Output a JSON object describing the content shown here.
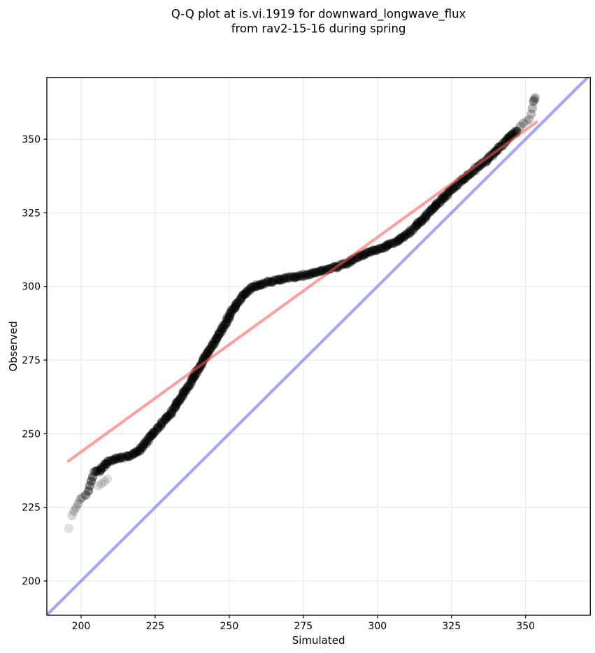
{
  "title": {
    "line1": "Q-Q plot at is.vi.1919 for downward_longwave_flux",
    "line2": "from rav2-15-16 during spring"
  },
  "chart_data": {
    "type": "scatter",
    "title": "Q-Q plot at is.vi.1919 for downward_longwave_flux from rav2-15-16 during spring",
    "xlabel": "Simulated",
    "ylabel": "Observed",
    "xlim": [
      188.44,
      371.85
    ],
    "ylim": [
      188.37,
      370.97
    ],
    "xticks": [
      200,
      225,
      250,
      275,
      300,
      325,
      350
    ],
    "yticks": [
      200,
      225,
      250,
      275,
      300,
      325,
      350
    ],
    "grid": true,
    "grid_color": "#ebebeb",
    "background": "#ffffff",
    "identity_line": {
      "color": "rgb(115,115,240)",
      "opacity": 0.64,
      "width": 4.2,
      "from": [
        188.44,
        188.44
      ],
      "to": [
        370.97,
        370.97
      ]
    },
    "trend_line": {
      "color": "rgb(244,90,90)",
      "opacity": 0.56,
      "width": 4.2,
      "from": [
        195.7,
        240.7
      ],
      "to": [
        353.7,
        355.8
      ]
    },
    "series": [
      {
        "name": "quantile-points",
        "marker": "circle",
        "marker_radius_px": 6.6,
        "color": "#000000",
        "band_alpha": 0.35,
        "band_points": [
          [
            204.6,
            236.8
          ],
          [
            206,
            237.4
          ],
          [
            207.2,
            238.6
          ],
          [
            208.4,
            239.9
          ],
          [
            209.8,
            240.9
          ],
          [
            211.5,
            241.4
          ],
          [
            213.2,
            241.7
          ],
          [
            215,
            242.2
          ],
          [
            216.8,
            242.7
          ],
          [
            218.3,
            243.4
          ],
          [
            219.8,
            244.6
          ],
          [
            221.2,
            246.2
          ],
          [
            222.8,
            248.2
          ],
          [
            224.5,
            250.4
          ],
          [
            226.2,
            252.4
          ],
          [
            228,
            254.5
          ],
          [
            230,
            256.8
          ],
          [
            232,
            259.5
          ],
          [
            234,
            262.8
          ],
          [
            236,
            265.9
          ],
          [
            238,
            269.3
          ],
          [
            240,
            272.9
          ],
          [
            242,
            276.2
          ],
          [
            244,
            279.5
          ],
          [
            246,
            282.8
          ],
          [
            248,
            286.3
          ],
          [
            250,
            289.9
          ],
          [
            252,
            293.2
          ],
          [
            254,
            296.2
          ],
          [
            255.5,
            297.9
          ],
          [
            257,
            299.1
          ],
          [
            258.5,
            299.9
          ],
          [
            260.5,
            300.7
          ],
          [
            263,
            301.4
          ],
          [
            266,
            302.1
          ],
          [
            269,
            302.7
          ],
          [
            272,
            303.2
          ],
          [
            275,
            303.8
          ],
          [
            278,
            304.4
          ],
          [
            281,
            305.2
          ],
          [
            284,
            306
          ],
          [
            287,
            306.9
          ],
          [
            289.5,
            307.9
          ],
          [
            291.5,
            309
          ],
          [
            293.5,
            310.1
          ],
          [
            295.5,
            311
          ],
          [
            297.5,
            311.7
          ],
          [
            300,
            312.5
          ],
          [
            302.5,
            313.4
          ],
          [
            305,
            314.6
          ],
          [
            307,
            315.7
          ],
          [
            309,
            317
          ],
          [
            311,
            318.6
          ],
          [
            313,
            320.5
          ],
          [
            315,
            322.5
          ],
          [
            317,
            324.6
          ],
          [
            319,
            326.7
          ],
          [
            321,
            328.8
          ],
          [
            323,
            330.9
          ],
          [
            325,
            332.8
          ],
          [
            327,
            334.6
          ],
          [
            329,
            336.3
          ],
          [
            331,
            338
          ],
          [
            333,
            339.7
          ],
          [
            335,
            341.4
          ],
          [
            337,
            343.1
          ],
          [
            339,
            344.9
          ],
          [
            341,
            346.9
          ],
          [
            342.5,
            348.5
          ],
          [
            344,
            350.2
          ],
          [
            345.5,
            351.6
          ],
          [
            347,
            352.8
          ]
        ],
        "sparse_points": [
          [
            195.9,
            217.9,
            0.12
          ],
          [
            196.9,
            222.2,
            0.16
          ],
          [
            197.6,
            223.7,
            0.18
          ],
          [
            198.3,
            224.9,
            0.2
          ],
          [
            199.0,
            226.2,
            0.22
          ],
          [
            199.7,
            227.7,
            0.24
          ],
          [
            200.4,
            228.4,
            0.24
          ],
          [
            201.6,
            229.2,
            0.4
          ],
          [
            202.5,
            230.6,
            0.46
          ],
          [
            202.9,
            232.3,
            0.42
          ],
          [
            203.4,
            233.9,
            0.46
          ],
          [
            203.9,
            235.3,
            0.48
          ],
          [
            205.8,
            232.3,
            0.13
          ],
          [
            206.9,
            233.0,
            0.14
          ],
          [
            207.9,
            233.8,
            0.14
          ],
          [
            208.9,
            234.7,
            0.12
          ],
          [
            348.2,
            354.3,
            0.3
          ],
          [
            349.2,
            355.4,
            0.24
          ],
          [
            350.3,
            356.1,
            0.2
          ],
          [
            351.2,
            356.7,
            0.2
          ],
          [
            351.9,
            358.5,
            0.25
          ],
          [
            352.3,
            360.5,
            0.28
          ],
          [
            352.7,
            362.8,
            0.3
          ],
          [
            352.9,
            363.3,
            0.26
          ],
          [
            353.2,
            364.0,
            0.3
          ]
        ]
      }
    ]
  }
}
